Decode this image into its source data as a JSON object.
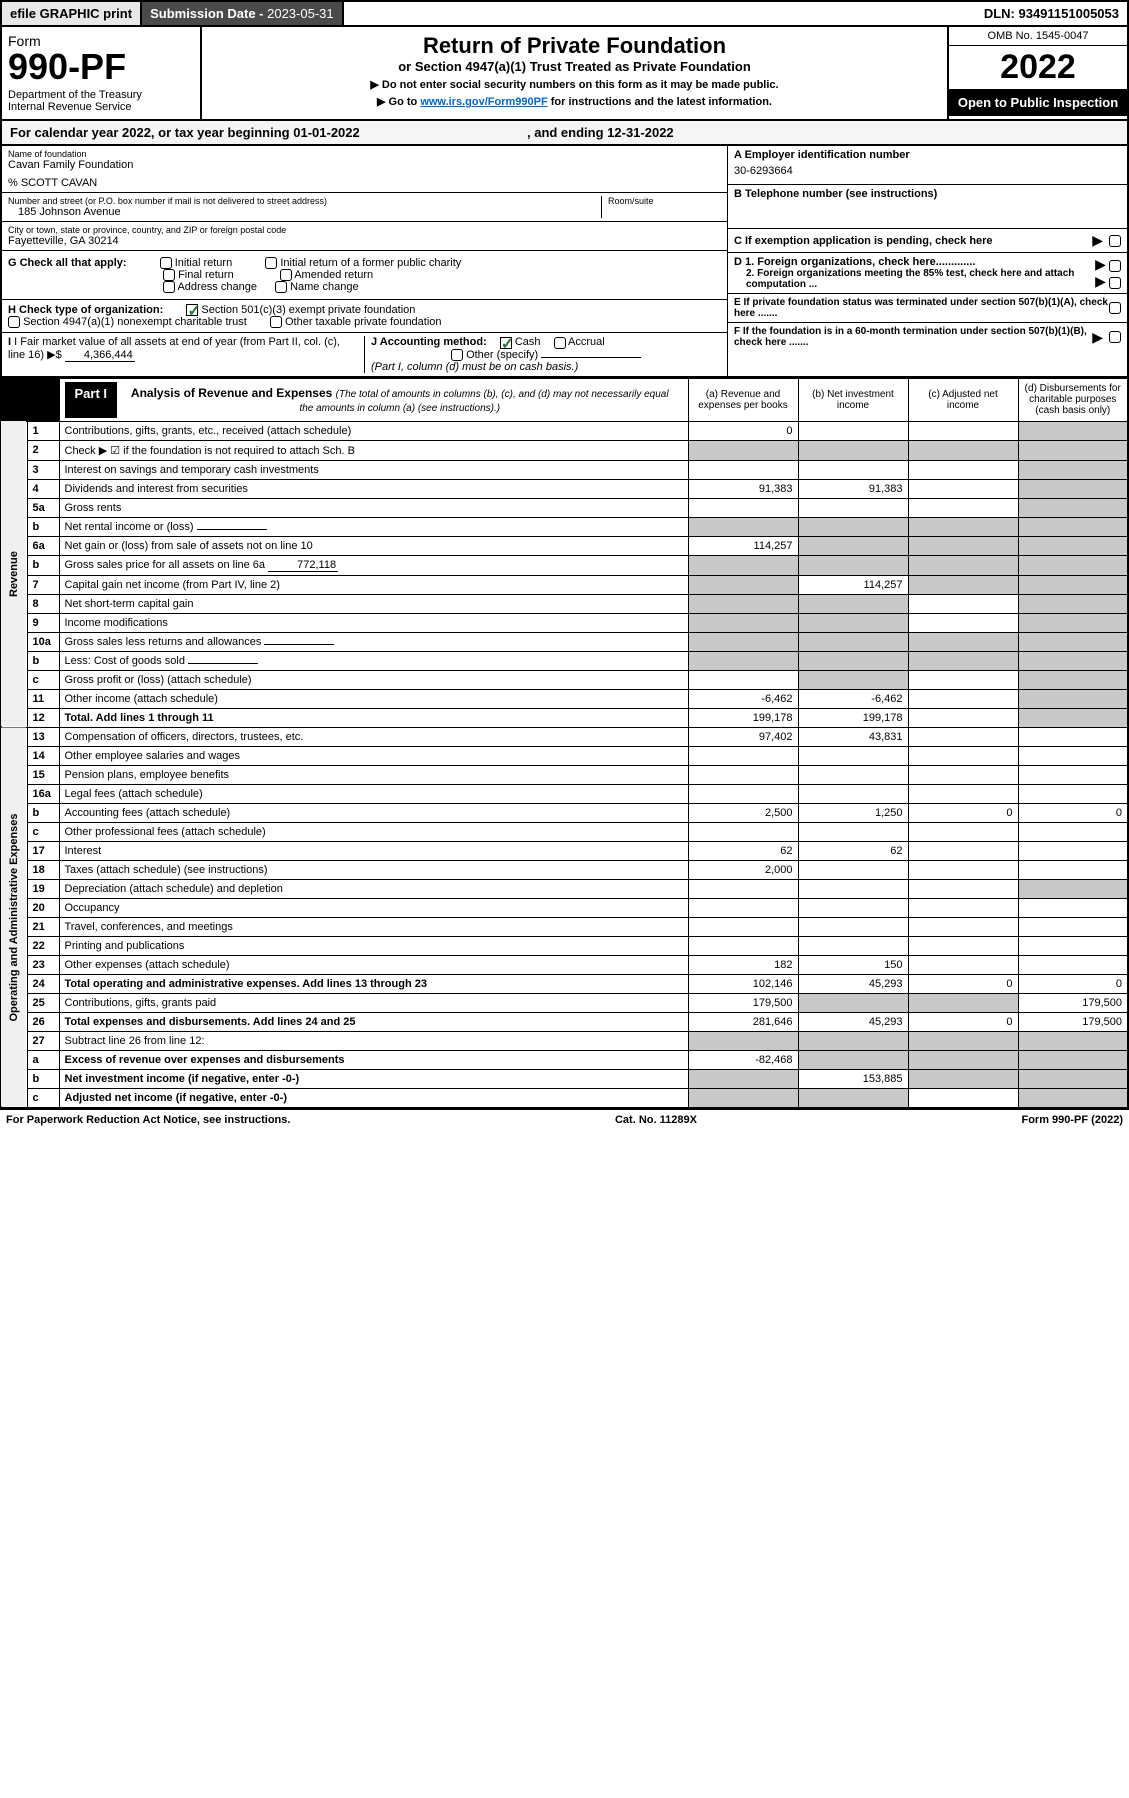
{
  "topbar": {
    "efile": "efile GRAPHIC print",
    "sub_label": "Submission Date - ",
    "sub_date": "2023-05-31",
    "dln_label": "DLN: ",
    "dln": "93491151005053"
  },
  "header": {
    "form_word": "Form",
    "form_num": "990-PF",
    "dept": "Department of the Treasury\nInternal Revenue Service",
    "title": "Return of Private Foundation",
    "subtitle": "or Section 4947(a)(1) Trust Treated as Private Foundation",
    "instr1": "▶ Do not enter social security numbers on this form as it may be made public.",
    "instr2_pre": "▶ Go to ",
    "instr2_link": "www.irs.gov/Form990PF",
    "instr2_post": " for instructions and the latest information.",
    "omb": "OMB No. 1545-0047",
    "year": "2022",
    "open_pub": "Open to Public Inspection"
  },
  "cal_year": {
    "pre": "For calendar year 2022, or tax year beginning ",
    "begin": "01-01-2022",
    "mid": " , and ending ",
    "end": "12-31-2022"
  },
  "entity": {
    "name_lbl": "Name of foundation",
    "name": "Cavan Family Foundation",
    "care_of": "% SCOTT CAVAN",
    "addr_lbl": "Number and street (or P.O. box number if mail is not delivered to street address)",
    "addr": "185 Johnson Avenue",
    "room_lbl": "Room/suite",
    "room": "",
    "city_lbl": "City or town, state or province, country, and ZIP or foreign postal code",
    "city": "Fayetteville, GA  30214",
    "ein_lbl": "A Employer identification number",
    "ein": "30-6293664",
    "phone_lbl": "B Telephone number (see instructions)",
    "phone": "",
    "c_lbl": "C If exemption application is pending, check here",
    "d1_lbl": "D 1. Foreign organizations, check here.............",
    "d2_lbl": "2. Foreign organizations meeting the 85% test, check here and attach computation ...",
    "e_lbl": "E If private foundation status was terminated under section 507(b)(1)(A), check here .......",
    "f_lbl": "F If the foundation is in a 60-month termination under section 507(b)(1)(B), check here ......."
  },
  "checks": {
    "g_lbl": "G Check all that apply:",
    "g_opts": [
      "Initial return",
      "Initial return of a former public charity",
      "Final return",
      "Amended return",
      "Address change",
      "Name change"
    ],
    "h_lbl": "H Check type of organization:",
    "h1": "Section 501(c)(3) exempt private foundation",
    "h2": "Section 4947(a)(1) nonexempt charitable trust",
    "h3": "Other taxable private foundation",
    "i_lbl": "I Fair market value of all assets at end of year (from Part II, col. (c), line 16)",
    "i_val": "4,366,444",
    "j_lbl": "J Accounting method:",
    "j_opts": [
      "Cash",
      "Accrual"
    ],
    "j_other": "Other (specify)",
    "j_note": "(Part I, column (d) must be on cash basis.)"
  },
  "part1": {
    "lbl": "Part I",
    "title": "Analysis of Revenue and Expenses",
    "note": "(The total of amounts in columns (b), (c), and (d) may not necessarily equal the amounts in column (a) (see instructions).)",
    "cols": {
      "a": "(a) Revenue and expenses per books",
      "b": "(b) Net investment income",
      "c": "(c) Adjusted net income",
      "d": "(d) Disbursements for charitable purposes (cash basis only)"
    },
    "side1": "Revenue",
    "side2": "Operating and Administrative Expenses"
  },
  "rows": [
    {
      "n": "1",
      "d": "Contributions, gifts, grants, etc., received (attach schedule)",
      "a": "0",
      "b": "",
      "c": null,
      "dcol": null
    },
    {
      "n": "2",
      "d": "Check ▶ ☑ if the foundation is not required to attach Sch. B",
      "a": null,
      "b": null,
      "c": null,
      "dcol": null,
      "shadeAll": true
    },
    {
      "n": "3",
      "d": "Interest on savings and temporary cash investments",
      "a": "",
      "b": "",
      "c": "",
      "dcol": null
    },
    {
      "n": "4",
      "d": "Dividends and interest from securities",
      "a": "91,383",
      "b": "91,383",
      "c": "",
      "dcol": null
    },
    {
      "n": "5a",
      "d": "Gross rents",
      "a": "",
      "b": "",
      "c": "",
      "dcol": null
    },
    {
      "n": "b",
      "d": "Net rental income or (loss)",
      "a": null,
      "b": null,
      "c": null,
      "dcol": null,
      "inline": true,
      "shadeAll": true
    },
    {
      "n": "6a",
      "d": "Net gain or (loss) from sale of assets not on line 10",
      "a": "114,257",
      "b": null,
      "c": null,
      "dcol": null,
      "shadeBCD": true
    },
    {
      "n": "b",
      "d": "Gross sales price for all assets on line 6a",
      "a": null,
      "b": null,
      "c": null,
      "dcol": null,
      "inline": true,
      "inlineVal": "772,118",
      "shadeAll": true
    },
    {
      "n": "7",
      "d": "Capital gain net income (from Part IV, line 2)",
      "a": null,
      "b": "114,257",
      "c": null,
      "dcol": null,
      "shadeA": true,
      "shadeCD": true
    },
    {
      "n": "8",
      "d": "Net short-term capital gain",
      "a": null,
      "b": null,
      "c": "",
      "dcol": null,
      "shadeAB": true,
      "shadeD": true
    },
    {
      "n": "9",
      "d": "Income modifications",
      "a": null,
      "b": null,
      "c": "",
      "dcol": null,
      "shadeAB": true,
      "shadeD": true
    },
    {
      "n": "10a",
      "d": "Gross sales less returns and allowances",
      "a": null,
      "b": null,
      "c": null,
      "dcol": null,
      "inline": true,
      "shadeAll": true
    },
    {
      "n": "b",
      "d": "Less: Cost of goods sold",
      "a": null,
      "b": null,
      "c": null,
      "dcol": null,
      "inline": true,
      "shadeAll": true
    },
    {
      "n": "c",
      "d": "Gross profit or (loss) (attach schedule)",
      "a": "",
      "b": null,
      "c": "",
      "dcol": null,
      "shadeB": true,
      "shadeD": true
    },
    {
      "n": "11",
      "d": "Other income (attach schedule)",
      "a": "-6,462",
      "b": "-6,462",
      "c": "",
      "dcol": null
    },
    {
      "n": "12",
      "d": "Total. Add lines 1 through 11",
      "a": "199,178",
      "b": "199,178",
      "c": "",
      "dcol": null,
      "bold": true
    },
    {
      "n": "13",
      "d": "Compensation of officers, directors, trustees, etc.",
      "a": "97,402",
      "b": "43,831",
      "c": "",
      "dcol": ""
    },
    {
      "n": "14",
      "d": "Other employee salaries and wages",
      "a": "",
      "b": "",
      "c": "",
      "dcol": ""
    },
    {
      "n": "15",
      "d": "Pension plans, employee benefits",
      "a": "",
      "b": "",
      "c": "",
      "dcol": ""
    },
    {
      "n": "16a",
      "d": "Legal fees (attach schedule)",
      "a": "",
      "b": "",
      "c": "",
      "dcol": ""
    },
    {
      "n": "b",
      "d": "Accounting fees (attach schedule)",
      "a": "2,500",
      "b": "1,250",
      "c": "0",
      "dcol": "0"
    },
    {
      "n": "c",
      "d": "Other professional fees (attach schedule)",
      "a": "",
      "b": "",
      "c": "",
      "dcol": ""
    },
    {
      "n": "17",
      "d": "Interest",
      "a": "62",
      "b": "62",
      "c": "",
      "dcol": ""
    },
    {
      "n": "18",
      "d": "Taxes (attach schedule) (see instructions)",
      "a": "2,000",
      "b": "",
      "c": "",
      "dcol": ""
    },
    {
      "n": "19",
      "d": "Depreciation (attach schedule) and depletion",
      "a": "",
      "b": "",
      "c": "",
      "dcol": null,
      "shadeD": true
    },
    {
      "n": "20",
      "d": "Occupancy",
      "a": "",
      "b": "",
      "c": "",
      "dcol": ""
    },
    {
      "n": "21",
      "d": "Travel, conferences, and meetings",
      "a": "",
      "b": "",
      "c": "",
      "dcol": ""
    },
    {
      "n": "22",
      "d": "Printing and publications",
      "a": "",
      "b": "",
      "c": "",
      "dcol": ""
    },
    {
      "n": "23",
      "d": "Other expenses (attach schedule)",
      "a": "182",
      "b": "150",
      "c": "",
      "dcol": ""
    },
    {
      "n": "24",
      "d": "Total operating and administrative expenses. Add lines 13 through 23",
      "a": "102,146",
      "b": "45,293",
      "c": "0",
      "dcol": "0",
      "bold": true
    },
    {
      "n": "25",
      "d": "Contributions, gifts, grants paid",
      "a": "179,500",
      "b": null,
      "c": null,
      "dcol": "179,500",
      "shadeBC": true
    },
    {
      "n": "26",
      "d": "Total expenses and disbursements. Add lines 24 and 25",
      "a": "281,646",
      "b": "45,293",
      "c": "0",
      "dcol": "179,500",
      "bold": true
    },
    {
      "n": "27",
      "d": "Subtract line 26 from line 12:",
      "a": null,
      "b": null,
      "c": null,
      "dcol": null,
      "shadeAll": true
    },
    {
      "n": "a",
      "d": "Excess of revenue over expenses and disbursements",
      "a": "-82,468",
      "b": null,
      "c": null,
      "dcol": null,
      "bold": true,
      "shadeBCD": true
    },
    {
      "n": "b",
      "d": "Net investment income (if negative, enter -0-)",
      "a": null,
      "b": "153,885",
      "c": null,
      "dcol": null,
      "bold": true,
      "shadeA": true,
      "shadeCD": true
    },
    {
      "n": "c",
      "d": "Adjusted net income (if negative, enter -0-)",
      "a": null,
      "b": null,
      "c": "",
      "dcol": null,
      "bold": true,
      "shadeAB": true,
      "shadeD": true
    }
  ],
  "footer": {
    "left": "For Paperwork Reduction Act Notice, see instructions.",
    "mid": "Cat. No. 11289X",
    "right": "Form 990-PF (2022)"
  }
}
